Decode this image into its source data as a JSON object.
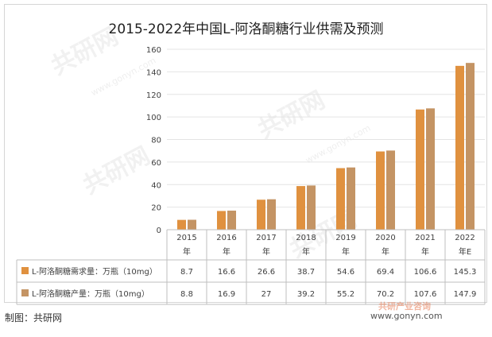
{
  "title": "2015-2022年中国L-阿洛酮糖行业供需及预测",
  "source": "制图：共研网",
  "watermark": "共研网",
  "watermark_site": "www.gonyn.com",
  "brand": {
    "logo": "共研产业咨询",
    "site": "www.gonyn.com"
  },
  "colors": {
    "demand": "#e0913f",
    "production": "#c49464",
    "grid": "#e4e4e4",
    "axis": "#bfbfbf"
  },
  "chart_data": {
    "type": "bar",
    "title": "2015-2022年中国L-阿洛酮糖行业供需及预测",
    "categories": [
      "2015年",
      "2016年",
      "2017年",
      "2018年",
      "2019年",
      "2020年",
      "2021年",
      "2022年E"
    ],
    "category_lines": [
      [
        "2015",
        "年"
      ],
      [
        "2016",
        "年"
      ],
      [
        "2017",
        "年"
      ],
      [
        "2018",
        "年"
      ],
      [
        "2019",
        "年"
      ],
      [
        "2020",
        "年"
      ],
      [
        "2021",
        "年"
      ],
      [
        "2022",
        "年E"
      ]
    ],
    "series": [
      {
        "name": "L-阿洛酮糖需求量：万瓶（10mg）",
        "values": [
          8.7,
          16.6,
          26.6,
          38.7,
          54.6,
          69.4,
          106.6,
          145.3
        ],
        "labels": [
          "8.7",
          "16.6",
          "26.6",
          "38.7",
          "54.6",
          "69.4",
          "106.6",
          "145.3"
        ]
      },
      {
        "name": "L-阿洛酮糖产量：万瓶（10mg）",
        "values": [
          8.8,
          16.9,
          27,
          39.2,
          55.2,
          70.2,
          107.6,
          147.9
        ],
        "labels": [
          "8.8",
          "16.9",
          "27",
          "39.2",
          "55.2",
          "70.2",
          "107.6",
          "147.9"
        ]
      }
    ],
    "ylim": [
      0,
      160
    ],
    "yticks": [
      "0",
      "20",
      "40",
      "60",
      "80",
      "100",
      "120",
      "140",
      "160"
    ],
    "grid": true,
    "legend": "data-table-left"
  }
}
